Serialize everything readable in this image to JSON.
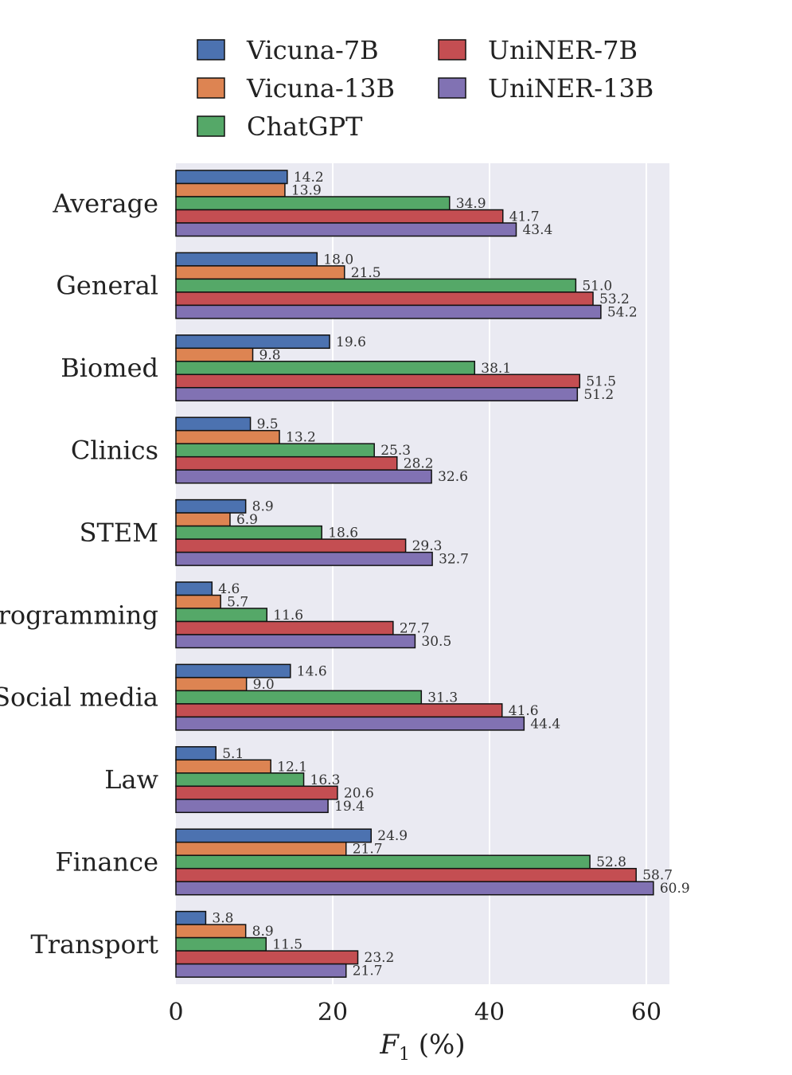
{
  "chart_data": {
    "type": "bar",
    "orientation": "horizontal",
    "categories": [
      "Average",
      "General",
      "Biomed",
      "Clinics",
      "STEM",
      "Programming",
      "Social media",
      "Law",
      "Finance",
      "Transport"
    ],
    "series": [
      {
        "name": "Vicuna-7B",
        "color": "#4c72b0",
        "values": [
          14.2,
          18.0,
          19.6,
          9.5,
          8.9,
          4.6,
          14.6,
          5.1,
          24.9,
          3.8
        ]
      },
      {
        "name": "Vicuna-13B",
        "color": "#dd8452",
        "values": [
          13.9,
          21.5,
          9.8,
          13.2,
          6.9,
          5.7,
          9.0,
          12.1,
          21.7,
          8.9
        ]
      },
      {
        "name": "ChatGPT",
        "color": "#55a868",
        "values": [
          34.9,
          51.0,
          38.1,
          25.3,
          18.6,
          11.6,
          31.3,
          16.3,
          52.8,
          11.5
        ]
      },
      {
        "name": "UniNER-7B",
        "color": "#c44e52",
        "values": [
          41.7,
          53.2,
          51.5,
          28.2,
          29.3,
          27.7,
          41.6,
          20.6,
          58.7,
          23.2
        ]
      },
      {
        "name": "UniNER-13B",
        "color": "#8172b3",
        "values": [
          43.4,
          54.2,
          51.2,
          32.6,
          32.7,
          30.5,
          44.4,
          19.4,
          60.9,
          21.7
        ]
      }
    ],
    "x_ticks": [
      "0",
      "20",
      "40",
      "60"
    ],
    "x_tick_values": [
      0,
      20,
      40,
      60
    ],
    "xlabel_main": "F",
    "xlabel_sub": "1",
    "xlabel_rest": " (%)",
    "xlim": [
      0,
      63
    ],
    "grid": true,
    "legend": "top",
    "background_color": "#eaeaf2"
  }
}
